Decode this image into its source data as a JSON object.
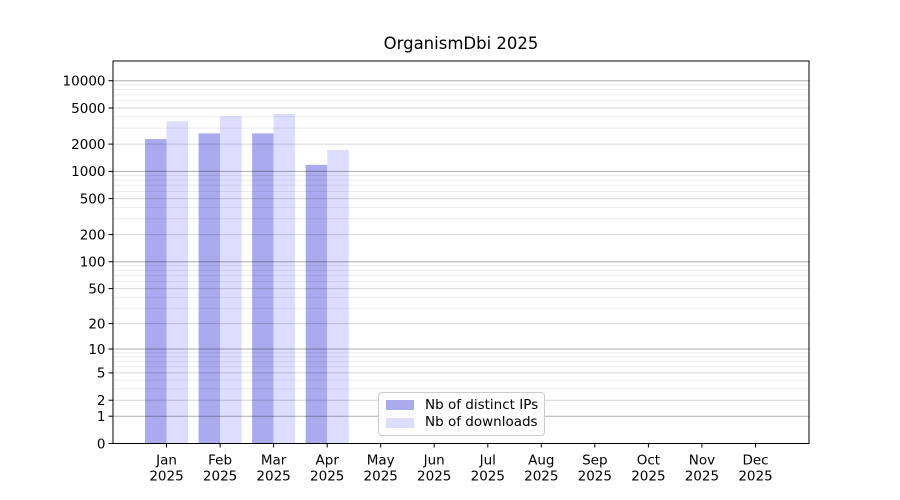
{
  "chart_data": {
    "type": "bar",
    "title": "OrganismDbi 2025",
    "months": [
      "Jan",
      "Feb",
      "Mar",
      "Apr",
      "May",
      "Jun",
      "Jul",
      "Aug",
      "Sep",
      "Oct",
      "Nov",
      "Dec"
    ],
    "year_label": "2025",
    "series": [
      {
        "name": "Nb of distinct IPs",
        "color": "#aaaaee",
        "values": [
          2270,
          2620,
          2620,
          1180,
          null,
          null,
          null,
          null,
          null,
          null,
          null,
          null
        ]
      },
      {
        "name": "Nb of downloads",
        "color": "#ddddff",
        "values": [
          3570,
          4060,
          4300,
          1720,
          null,
          null,
          null,
          null,
          null,
          null,
          null,
          null
        ]
      }
    ],
    "yscale": "log1p",
    "yticks": [
      0,
      1,
      2,
      5,
      10,
      20,
      50,
      100,
      200,
      500,
      1000,
      2000,
      5000,
      10000
    ],
    "ylim": [
      0,
      16000
    ],
    "grid": true,
    "legend_position": "lower center"
  }
}
